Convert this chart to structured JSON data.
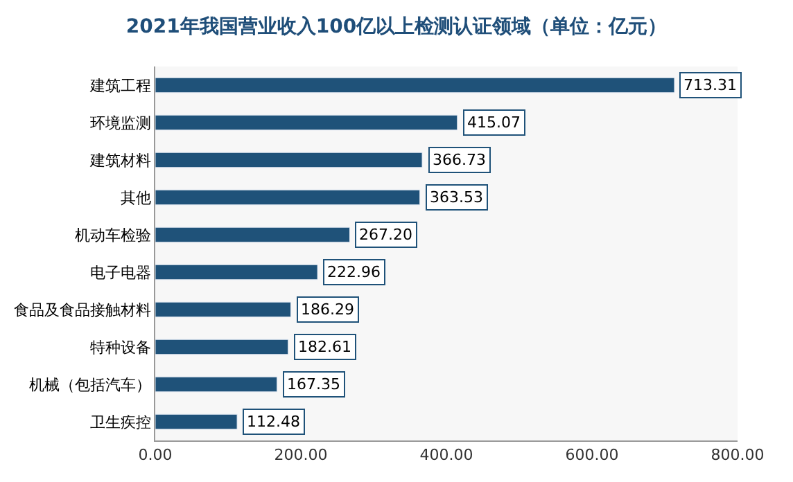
{
  "chart_data": {
    "type": "bar",
    "orientation": "horizontal",
    "title": "2021年我国营业收入100亿以上检测认证领域（单位：亿元）",
    "categories": [
      "建筑工程",
      "环境监测",
      "建筑材料",
      "其他",
      "机动车检验",
      "电子电器",
      "食品及食品接触材料",
      "特种设备",
      "机械（包括汽车）",
      "卫生疾控"
    ],
    "values": [
      713.31,
      415.07,
      366.73,
      363.53,
      267.2,
      222.96,
      186.29,
      182.61,
      167.35,
      112.48
    ],
    "value_labels": [
      "713.31",
      "415.07",
      "366.73",
      "363.53",
      "267.20",
      "222.96",
      "186.29",
      "182.61",
      "167.35",
      "112.48"
    ],
    "color": "#1f5279",
    "xlim": [
      0,
      800
    ],
    "xticks": [
      {
        "value": 0,
        "label": "0.00"
      },
      {
        "value": 200,
        "label": "200.00"
      },
      {
        "value": 400,
        "label": "400.00"
      },
      {
        "value": 600,
        "label": "600.00"
      },
      {
        "value": 800,
        "label": "800.00"
      }
    ],
    "grid": false,
    "legend": false
  }
}
